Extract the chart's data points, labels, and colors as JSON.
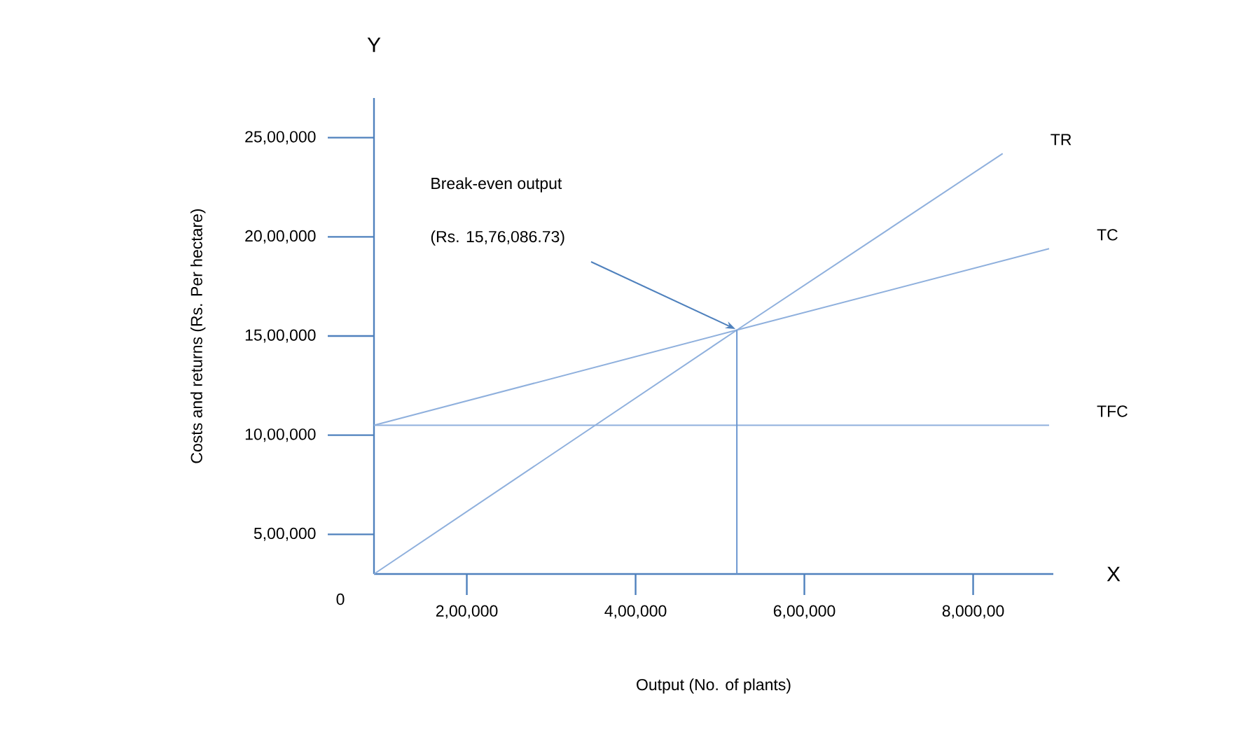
{
  "chart_data": {
    "type": "line",
    "xlabel": "Output (No. of plants)",
    "ylabel": "Costs and returns (Rs. Per hectare)",
    "xlim": [
      90000,
      895000
    ],
    "ylim": [
      300000,
      2700000
    ],
    "xticks": [
      {
        "value": 200000,
        "label": "2,00,000"
      },
      {
        "value": 400000,
        "label": "4,00,000"
      },
      {
        "value": 600000,
        "label": "6,00,000"
      },
      {
        "value": 800000,
        "label": "8,000,00"
      }
    ],
    "yticks": [
      {
        "value": 500000,
        "label": "5,00,000"
      },
      {
        "value": 1000000,
        "label": "10,00,000"
      },
      {
        "value": 1500000,
        "label": "15,00,000"
      },
      {
        "value": 2000000,
        "label": "20,00,000"
      },
      {
        "value": 2500000,
        "label": "25,00,000"
      }
    ],
    "marker": "none",
    "line_style": "solid",
    "series": [
      {
        "name": "TR",
        "color": "#8fb0dd",
        "x": [
          90000,
          520000,
          835000
        ],
        "values": [
          300000,
          1530000,
          2420000
        ]
      },
      {
        "name": "TC",
        "color": "#8fb0dd",
        "x": [
          90000,
          520000,
          890000
        ],
        "values": [
          1050000,
          1530000,
          1940000
        ]
      },
      {
        "name": "TFC",
        "color": "#8fb0dd",
        "x": [
          90000,
          890000
        ],
        "values": [
          1050000,
          1050000
        ]
      },
      {
        "color": "#6a96d0",
        "x": [
          520000,
          520000
        ],
        "values": [
          300000,
          1530000
        ]
      }
    ],
    "annotations": [
      "Break-even output",
      "(Rs. 15,76,086.73)",
      "Y",
      "X",
      "0"
    ]
  }
}
